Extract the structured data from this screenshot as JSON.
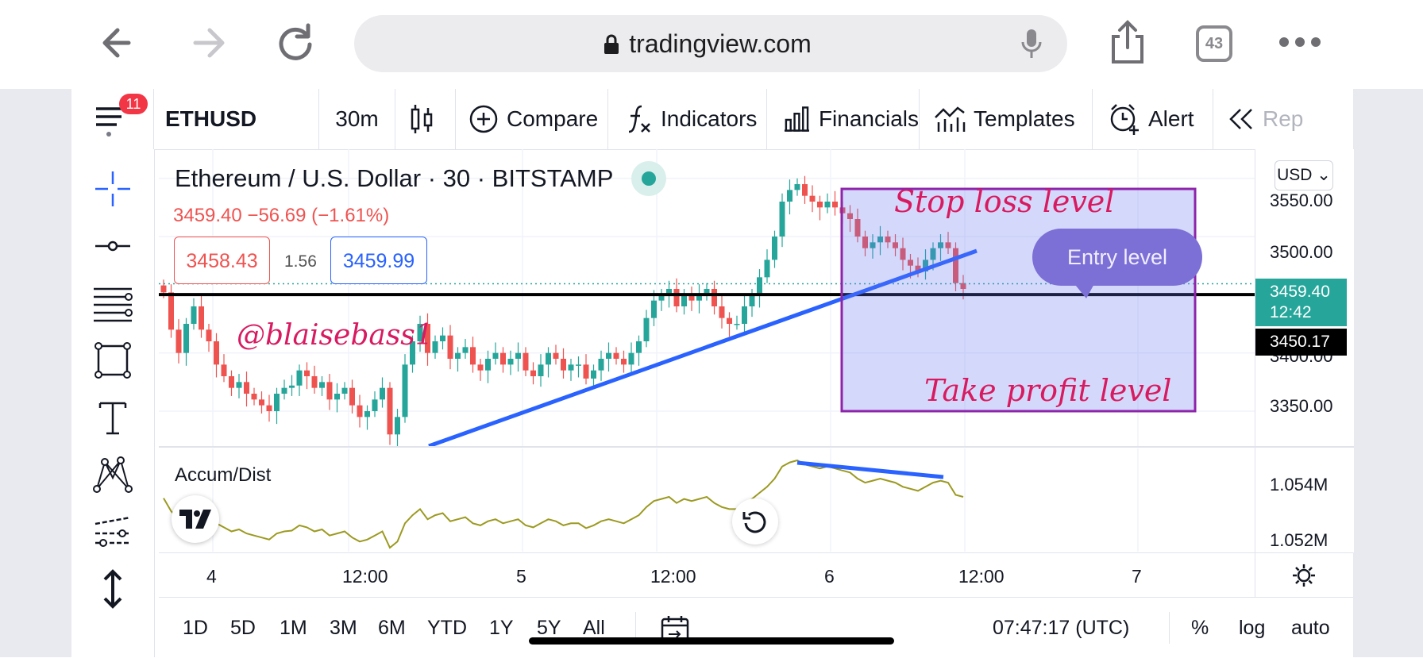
{
  "browser": {
    "url": "tradingview.com",
    "tab_count": "43"
  },
  "toolbar": {
    "menu_badge": "11",
    "symbol": "ETHUSD",
    "interval": "30m",
    "compare": "Compare",
    "indicators": "Indicators",
    "financials": "Financials",
    "templates": "Templates",
    "alert": "Alert",
    "replay": "Rep"
  },
  "legend": {
    "title": "Ethereum / U.S. Dollar · 30 · BITSTAMP",
    "price_change": "3459.40 −56.69 (−1.61%)",
    "sell_price": "3458.43",
    "spread": "1.56",
    "buy_price": "3459.99"
  },
  "annotations": {
    "stop_loss": "Stop loss level",
    "take_profit": "Take profit level",
    "entry": "Entry level",
    "watermark": "@blaisebass1"
  },
  "price_axis": {
    "currency": "USD",
    "labels": [
      "3550.00",
      "3500.00",
      "3400.00",
      "3350.00"
    ],
    "current_price": "3459.40",
    "countdown": "12:42",
    "crosshair_price": "3450.17",
    "current_color": "#26a69a"
  },
  "indicator": {
    "name": "Accum/Dist",
    "labels": [
      "1.054M",
      "1.052M"
    ]
  },
  "time_axis": {
    "labels": [
      "4",
      "12:00",
      "5",
      "12:00",
      "6",
      "12:00",
      "7"
    ]
  },
  "bottom_bar": {
    "ranges": [
      "1D",
      "5D",
      "1M",
      "3M",
      "6M",
      "YTD",
      "1Y",
      "5Y",
      "All"
    ],
    "clock": "07:47:17 (UTC)",
    "percent": "%",
    "log": "log",
    "auto": "auto"
  },
  "chart_data": {
    "type": "candlestick",
    "symbol": "ETHUSD",
    "interval": "30",
    "exchange": "BITSTAMP",
    "ylim": [
      3320,
      3575
    ],
    "y_ticks": [
      3350,
      3400,
      3500,
      3550
    ],
    "last_price": 3459.4,
    "horizontal_line": 3450.17,
    "up_color": "#26a69a",
    "down_color": "#ef5350",
    "closes": [
      3452,
      3420,
      3400,
      3425,
      3440,
      3420,
      3410,
      3390,
      3380,
      3370,
      3375,
      3365,
      3360,
      3355,
      3350,
      3365,
      3370,
      3372,
      3385,
      3380,
      3370,
      3375,
      3360,
      3365,
      3370,
      3355,
      3345,
      3350,
      3360,
      3370,
      3330,
      3345,
      3390,
      3410,
      3425,
      3400,
      3410,
      3415,
      3395,
      3400,
      3405,
      3390,
      3385,
      3395,
      3400,
      3390,
      3395,
      3400,
      3385,
      3380,
      3390,
      3400,
      3395,
      3385,
      3390,
      3390,
      3378,
      3385,
      3395,
      3400,
      3395,
      3390,
      3400,
      3410,
      3430,
      3445,
      3450,
      3455,
      3440,
      3450,
      3445,
      3450,
      3455,
      3440,
      3430,
      3425,
      3425,
      3440,
      3450,
      3465,
      3480,
      3500,
      3530,
      3540,
      3545,
      3535,
      3530,
      3525,
      3530,
      3525,
      3520,
      3515,
      3500,
      3490,
      3495,
      3500,
      3495,
      3490,
      3480,
      3475,
      3470,
      3480,
      3490,
      3495,
      3490,
      3460,
      3455
    ],
    "ad_series": {
      "name": "Accum/Dist",
      "labels_shown": [
        "1.054M",
        "1.052M"
      ]
    }
  }
}
